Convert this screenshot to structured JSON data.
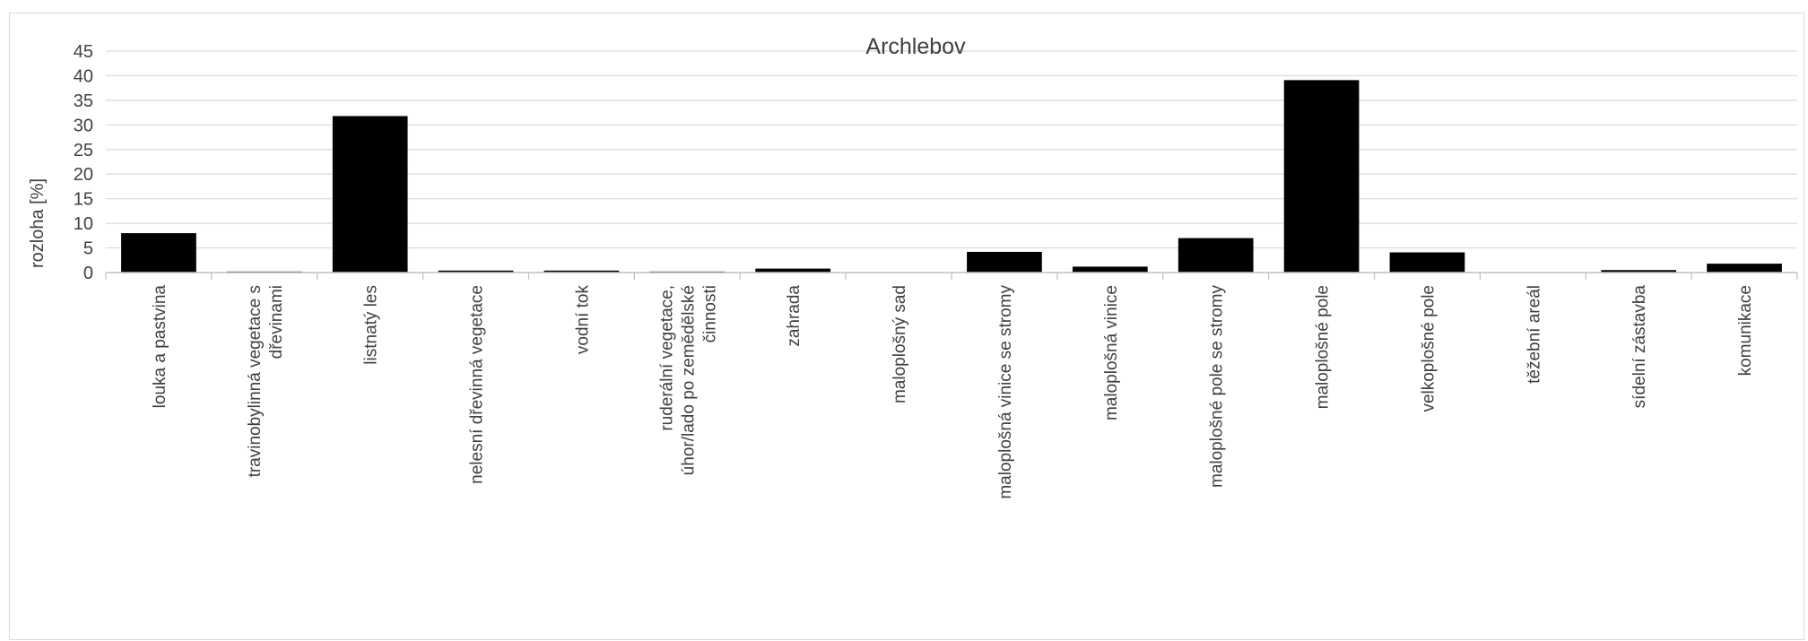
{
  "chart_data": {
    "type": "bar",
    "title": "Archlebov",
    "xlabel": "",
    "ylabel": "rozloha [%]",
    "ylim": [
      0,
      45
    ],
    "yticks": [
      0,
      5,
      10,
      15,
      20,
      25,
      30,
      35,
      40,
      45
    ],
    "grid": true,
    "bar_color": "#000000",
    "categories": [
      "louka a pastvina",
      "travinobylinná vegetace s dřevinami",
      "listnatý les",
      "nelesní dřevinná vegetace",
      "vodní tok",
      "ruderální vegetace, úhor/lado po zemědělské činnosti",
      "zahrada",
      "maloplošný sad",
      "maloplošná vinice se stromy",
      "maloplošná vinice",
      "maloplošné pole se stromy",
      "maloplošné pole",
      "velkoplošné pole",
      "těžební areál",
      "sídelní zástavba",
      "komunikace"
    ],
    "category_lines": [
      [
        "louka a pastvina"
      ],
      [
        "travinobylinná vegetace s",
        "dřevinami"
      ],
      [
        "listnatý les"
      ],
      [
        "nelesní dřevinná vegetace"
      ],
      [
        "vodní tok"
      ],
      [
        "ruderální vegetace,",
        "úhor/lado po zemědělské",
        "činnosti"
      ],
      [
        "zahrada"
      ],
      [
        "maloplošný sad"
      ],
      [
        "maloplošná vinice se stromy"
      ],
      [
        "maloplošná vinice"
      ],
      [
        "maloplošné pole se stromy"
      ],
      [
        "maloplošné pole"
      ],
      [
        "velkoplošné pole"
      ],
      [
        "těžební areál"
      ],
      [
        "sídelní zástavba"
      ],
      [
        "komunikace"
      ]
    ],
    "values": [
      8.0,
      0.2,
      31.8,
      0.4,
      0.4,
      0.2,
      0.8,
      0.0,
      4.2,
      1.2,
      7.0,
      39.1,
      4.1,
      0.0,
      0.5,
      1.8
    ]
  }
}
